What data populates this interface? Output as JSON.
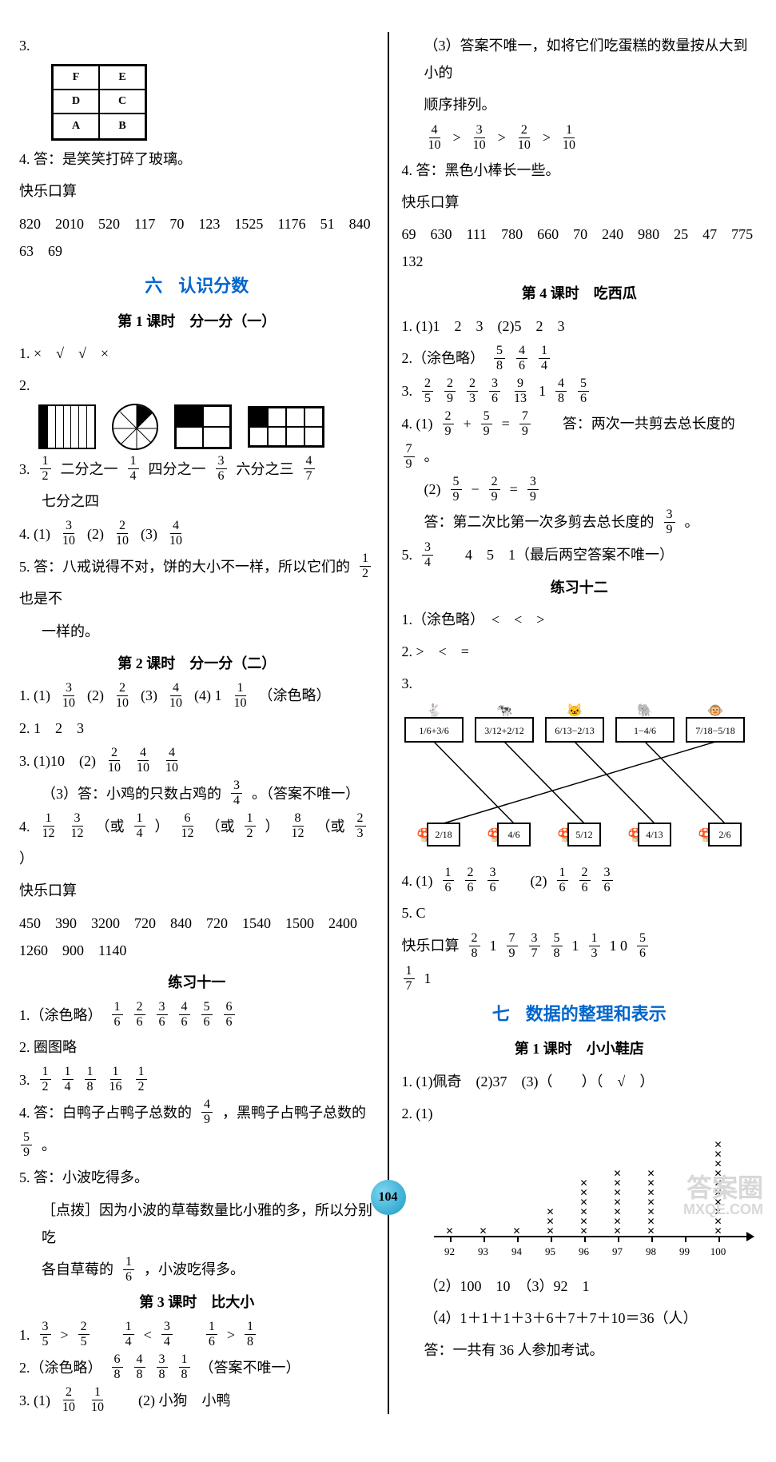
{
  "page_number": "104",
  "watermark_top": "答案圈",
  "watermark_bottom": "MXQE.COM",
  "left": {
    "q3": "3.",
    "shelf": [
      [
        "F",
        "E"
      ],
      [
        "D",
        "C"
      ],
      [
        "A",
        "B"
      ]
    ],
    "q4": "4. 答：是笑笑打碎了玻璃。",
    "kousuan_label": "快乐口算",
    "kousuan_vals": "820　2010　520　117　70　123　1525　1176　51　840　63　69",
    "unit6_num": "六",
    "unit6_title": "认识分数",
    "k1_title": "第 1 课时　分一分（一）",
    "k1_q1": "1. ×　√　√　×",
    "k1_q2": "2.",
    "k1_q3_lead": "3.",
    "k1_q3_parts": [
      "二分之一",
      "四分之一",
      "六分之三"
    ],
    "k1_q3_last": "七分之四",
    "k1_q4_lead": "4. (1)",
    "k1_q4_2": "(2)",
    "k1_q4_3": "(3)",
    "k1_q5": "5. 答：八戒说得不对，饼的大小不一样，所以它们的",
    "k1_q5b": "也是不",
    "k1_q5c": "一样的。",
    "k2_title": "第 2 课时　分一分（二）",
    "k2_q1_a": "1. (1)",
    "k2_q1_b": "(2)",
    "k2_q1_c": "(3)",
    "k2_q1_d": "(4) 1",
    "k2_q1_e": "（涂色略）",
    "k2_q2": "2. 1　2　3",
    "k2_q3a": "3. (1)10　(2)",
    "k2_q3b": "（3）答：小鸡的只数占鸡的",
    "k2_q3c": "。（答案不唯一）",
    "k2_q4_lead": "4.",
    "k2_q4_or": "（或",
    "k2_q4_cl": "）",
    "k2_ks_label": "快乐口算",
    "k2_ks_vals": "450　390　3200　720　840　720　1540　1500　2400　1260　900　1140",
    "lx11_title": "练习十一",
    "lx11_q1": "1.（涂色略）",
    "lx11_q2": "2. 圈图略",
    "lx11_q3": "3.",
    "lx11_q4a": "4. 答：白鸭子占鸭子总数的",
    "lx11_q4b": "，黑鸭子占鸭子总数的",
    "lx11_q4c": "。",
    "lx11_q5a": "5. 答：小波吃得多。",
    "lx11_q5b": "［点拨］因为小波的草莓数量比小雅的多，所以分别吃",
    "lx11_q5c": "各自草莓的",
    "lx11_q5d": "，小波吃得多。",
    "k3_title": "第 3 课时　比大小",
    "k3_q1_gt": ">",
    "k3_q1_lt": "<",
    "k3_q2a": "2.（涂色略）",
    "k3_q2b": "（答案不唯一）",
    "k3_q3a": "3. (1)",
    "k3_q3b": "(2) 小狗　小鸭"
  },
  "right": {
    "q3cont_a": "（3）答案不唯一，如将它们吃蛋糕的数量按从大到小的",
    "q3cont_b": "顺序排列。",
    "q4": "4. 答：黑色小棒长一些。",
    "ks_label": "快乐口算",
    "ks_vals": "69　630　111　780　660　70　240　980　25　47　775　132",
    "k4_title": "第 4 课时　吃西瓜",
    "k4_q1": "1. (1)1　2　3　(2)5　2　3",
    "k4_q2": "2.（涂色略）",
    "k4_q3": "3.",
    "k4_q4a": "4. (1)",
    "k4_q4a_eq": "=",
    "k4_q4a_plus": "+",
    "k4_q4a_ans": "答：两次一共剪去总长度的",
    "k4_q4a_end": "。",
    "k4_q4b": "(2)",
    "k4_q4b_minus": "−",
    "k4_q4b_eq": "=",
    "k4_q4b_ans": "答：第二次比第一次多剪去总长度的",
    "k4_q4b_end": "。",
    "k4_q5": "5.",
    "k4_q5_rest": "4　5　1（最后两空答案不唯一）",
    "lx12_title": "练习十二",
    "lx12_q1": "1.（涂色略）　<　<　>",
    "lx12_q2": "2. >　<　=",
    "lx12_q3": "3.",
    "match_top": [
      {
        "expr": "1/6+3/6"
      },
      {
        "expr": "3/12+2/12"
      },
      {
        "expr": "6/13−2/13"
      },
      {
        "expr": "1−4/6"
      },
      {
        "expr": "7/18−5/18"
      }
    ],
    "match_bottom": [
      "2/18",
      "4/6",
      "5/12",
      "4/13",
      "2/6"
    ],
    "match_edges": [
      [
        0,
        1
      ],
      [
        1,
        2
      ],
      [
        2,
        3
      ],
      [
        3,
        4
      ],
      [
        4,
        0
      ]
    ],
    "lx12_q4": "4. (1)",
    "lx12_q4b": "(2)",
    "lx12_q5": "5. C",
    "lx12_ks_label": "快乐口算",
    "unit7_num": "七",
    "unit7_title": "数据的整理和表示",
    "u7_k1_title": "第 1 课时　小小鞋店",
    "u7_q1": "1. (1)佩奇　(2)37　(3)（　　）（　√　）",
    "u7_q2": "2. (1)",
    "chart": {
      "labels": [
        "92",
        "93",
        "94",
        "95",
        "96",
        "97",
        "98",
        "99",
        "100"
      ],
      "values": [
        1,
        1,
        1,
        3,
        6,
        7,
        7,
        0,
        10
      ],
      "real": [
        1,
        1,
        1,
        3,
        6,
        7,
        7,
        0,
        10
      ]
    },
    "u7_q2_2": "（2）100　10　（3）92　1",
    "u7_q2_4": "（4）1＋1＋1＋3＋6＋7＋7＋10＝36（人）",
    "u7_q2_ans": "答：一共有 36 人参加考试。"
  },
  "fracs": {
    "f1_2": {
      "n": "1",
      "d": "2"
    },
    "f1_4": {
      "n": "1",
      "d": "4"
    },
    "f3_6": {
      "n": "3",
      "d": "6"
    },
    "f4_7": {
      "n": "4",
      "d": "7"
    },
    "f3_10": {
      "n": "3",
      "d": "10"
    },
    "f2_10": {
      "n": "2",
      "d": "10"
    },
    "f4_10": {
      "n": "4",
      "d": "10"
    },
    "f1_10": {
      "n": "1",
      "d": "10"
    },
    "f1_6": {
      "n": "1",
      "d": "6"
    },
    "f2_6": {
      "n": "2",
      "d": "6"
    },
    "f4_6": {
      "n": "4",
      "d": "6"
    },
    "f5_6": {
      "n": "5",
      "d": "6"
    },
    "f6_6": {
      "n": "6",
      "d": "6"
    },
    "f1_8": {
      "n": "1",
      "d": "8"
    },
    "f1_16": {
      "n": "1",
      "d": "16"
    },
    "f4_9": {
      "n": "4",
      "d": "9"
    },
    "f5_9": {
      "n": "5",
      "d": "9"
    },
    "f3_5": {
      "n": "3",
      "d": "5"
    },
    "f2_5": {
      "n": "2",
      "d": "5"
    },
    "f3_4": {
      "n": "3",
      "d": "4"
    },
    "f6_8": {
      "n": "6",
      "d": "8"
    },
    "f4_8": {
      "n": "4",
      "d": "8"
    },
    "f3_8": {
      "n": "3",
      "d": "8"
    },
    "f5_8": {
      "n": "5",
      "d": "8"
    },
    "f2_9": {
      "n": "2",
      "d": "9"
    },
    "f2_3": {
      "n": "2",
      "d": "3"
    },
    "f9_13": {
      "n": "9",
      "d": "13"
    },
    "f7_9": {
      "n": "7",
      "d": "9"
    },
    "f3_9": {
      "n": "3",
      "d": "9"
    },
    "f1_12": {
      "n": "1",
      "d": "12"
    },
    "f3_12": {
      "n": "3",
      "d": "12"
    },
    "f6_12": {
      "n": "6",
      "d": "12"
    },
    "f8_12": {
      "n": "8",
      "d": "12"
    },
    "f2_8": {
      "n": "2",
      "d": "8"
    },
    "f7_7": {
      "n": "7",
      "d": "7"
    },
    "f3_7": {
      "n": "3",
      "d": "7"
    },
    "f1_3": {
      "n": "1",
      "d": "3"
    },
    "f1_7": {
      "n": "1",
      "d": "7"
    }
  }
}
